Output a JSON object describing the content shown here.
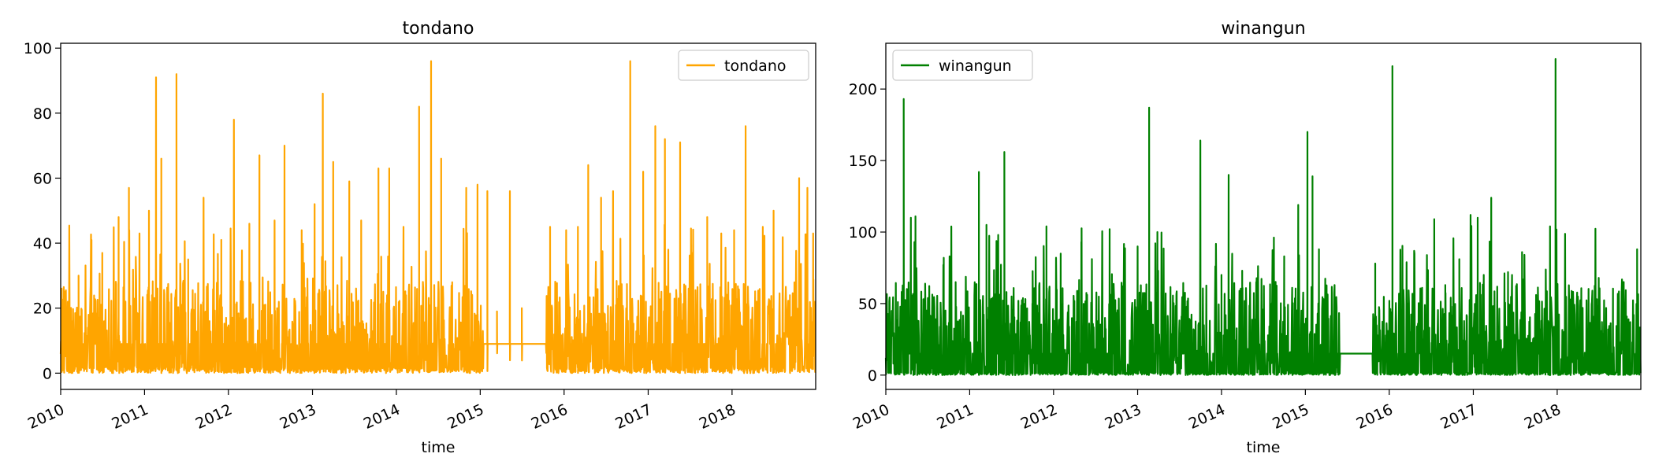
{
  "chart_data": [
    {
      "type": "line",
      "title": "tondano",
      "xlabel": "time",
      "ylabel": "",
      "x_range": [
        "2010-01-01",
        "2018-12-31"
      ],
      "x_ticks": [
        "2010",
        "2011",
        "2012",
        "2013",
        "2014",
        "2015",
        "2016",
        "2017",
        "2018"
      ],
      "ylim": [
        -5,
        101.5
      ],
      "y_ticks": [
        0,
        20,
        40,
        60,
        80,
        100
      ],
      "legend": {
        "placement": "top-right"
      },
      "series": [
        {
          "name": "tondano",
          "color": "#FFA500",
          "baseline": 9,
          "gaps": [
            [
              "2015-01-15",
              "2015-10-15"
            ]
          ],
          "points": [
            [
              "2010-01-05",
              26
            ],
            [
              "2010-02-01",
              22
            ],
            [
              "2010-03-20",
              30
            ],
            [
              "2010-05-15",
              41
            ],
            [
              "2010-07-01",
              37
            ],
            [
              "2010-09-10",
              48
            ],
            [
              "2010-10-25",
              57
            ],
            [
              "2010-12-10",
              43
            ],
            [
              "2011-01-20",
              50
            ],
            [
              "2011-02-20",
              91
            ],
            [
              "2011-03-15",
              66
            ],
            [
              "2011-05-20",
              92
            ],
            [
              "2011-07-10",
              35
            ],
            [
              "2011-09-15",
              54
            ],
            [
              "2011-12-01",
              41
            ],
            [
              "2012-01-25",
              78
            ],
            [
              "2012-04-01",
              46
            ],
            [
              "2012-05-15",
              67
            ],
            [
              "2012-07-20",
              47
            ],
            [
              "2012-09-01",
              70
            ],
            [
              "2012-11-15",
              44
            ],
            [
              "2013-01-10",
              52
            ],
            [
              "2013-02-15",
              86
            ],
            [
              "2013-04-01",
              65
            ],
            [
              "2013-06-10",
              59
            ],
            [
              "2013-08-01",
              47
            ],
            [
              "2013-10-15",
              63
            ],
            [
              "2013-12-01",
              63
            ],
            [
              "2014-02-01",
              45
            ],
            [
              "2014-04-10",
              82
            ],
            [
              "2014-06-01",
              96
            ],
            [
              "2014-07-15",
              66
            ],
            [
              "2014-09-01",
              28
            ],
            [
              "2014-11-01",
              57
            ],
            [
              "2014-12-20",
              58
            ],
            [
              "2015-02-01",
              56
            ],
            [
              "2015-03-15",
              19
            ],
            [
              "2015-05-10",
              56
            ],
            [
              "2015-07-01",
              20
            ],
            [
              "2015-11-01",
              45
            ],
            [
              "2016-01-10",
              44
            ],
            [
              "2016-03-01",
              45
            ],
            [
              "2016-04-15",
              64
            ],
            [
              "2016-06-10",
              54
            ],
            [
              "2016-08-01",
              56
            ],
            [
              "2016-10-15",
              96
            ],
            [
              "2016-12-10",
              62
            ],
            [
              "2017-02-01",
              76
            ],
            [
              "2017-03-15",
              72
            ],
            [
              "2017-05-20",
              71
            ],
            [
              "2017-07-10",
              37
            ],
            [
              "2017-09-15",
              48
            ],
            [
              "2017-11-15",
              43
            ],
            [
              "2018-01-10",
              44
            ],
            [
              "2018-03-01",
              76
            ],
            [
              "2018-05-15",
              45
            ],
            [
              "2018-07-01",
              50
            ],
            [
              "2018-09-10",
              24
            ],
            [
              "2018-10-20",
              60
            ],
            [
              "2018-11-25",
              57
            ],
            [
              "2018-12-20",
              43
            ]
          ]
        }
      ]
    },
    {
      "type": "line",
      "title": "winangun",
      "xlabel": "time",
      "ylabel": "",
      "x_range": [
        "2010-01-01",
        "2018-12-31"
      ],
      "x_ticks": [
        "2010",
        "2011",
        "2012",
        "2013",
        "2014",
        "2015",
        "2016",
        "2017",
        "2018"
      ],
      "ylim": [
        -10,
        232
      ],
      "y_ticks": [
        0,
        50,
        100,
        150,
        200
      ],
      "legend": {
        "placement": "top-left"
      },
      "series": [
        {
          "name": "winangun",
          "color": "#008000",
          "baseline": 15,
          "gaps": [
            [
              "2015-06-01",
              "2015-10-20"
            ]
          ],
          "points": [
            [
              "2010-01-15",
              32
            ],
            [
              "2010-02-20",
              36
            ],
            [
              "2010-03-20",
              193
            ],
            [
              "2010-04-20",
              110
            ],
            [
              "2010-05-10",
              111
            ],
            [
              "2010-06-20",
              54
            ],
            [
              "2010-09-10",
              82
            ],
            [
              "2010-11-01",
              65
            ],
            [
              "2011-02-10",
              142
            ],
            [
              "2011-03-15",
              105
            ],
            [
              "2011-06-01",
              156
            ],
            [
              "2011-08-01",
              52
            ],
            [
              "2011-10-01",
              50
            ],
            [
              "2011-12-01",
              104
            ],
            [
              "2012-02-01",
              85
            ],
            [
              "2012-05-01",
              93
            ],
            [
              "2012-09-01",
              102
            ],
            [
              "2013-01-01",
              90
            ],
            [
              "2013-02-20",
              187
            ],
            [
              "2013-05-01",
              40
            ],
            [
              "2013-09-01",
              32
            ],
            [
              "2013-10-01",
              164
            ],
            [
              "2014-01-01",
              70
            ],
            [
              "2014-02-01",
              140
            ],
            [
              "2014-04-01",
              73
            ],
            [
              "2014-06-01",
              65
            ],
            [
              "2014-10-01",
              40
            ],
            [
              "2014-12-01",
              119
            ],
            [
              "2015-01-10",
              170
            ],
            [
              "2015-02-01",
              139
            ],
            [
              "2015-03-01",
              88
            ],
            [
              "2015-11-01",
              78
            ],
            [
              "2016-01-15",
              216
            ],
            [
              "2016-03-01",
              40
            ],
            [
              "2016-05-01",
              34
            ],
            [
              "2016-07-15",
              109
            ],
            [
              "2016-09-01",
              63
            ],
            [
              "2016-11-01",
              81
            ],
            [
              "2016-12-20",
              112
            ],
            [
              "2017-01-20",
              110
            ],
            [
              "2017-03-20",
              124
            ],
            [
              "2017-06-01",
              72
            ],
            [
              "2017-08-01",
              86
            ],
            [
              "2017-10-01",
              56
            ],
            [
              "2017-12-01",
              104
            ],
            [
              "2017-12-25",
              221
            ],
            [
              "2018-03-01",
              53
            ],
            [
              "2018-07-01",
              68
            ],
            [
              "2018-09-01",
              36
            ],
            [
              "2018-11-15",
              37
            ],
            [
              "2018-12-15",
              88
            ]
          ]
        }
      ]
    }
  ]
}
